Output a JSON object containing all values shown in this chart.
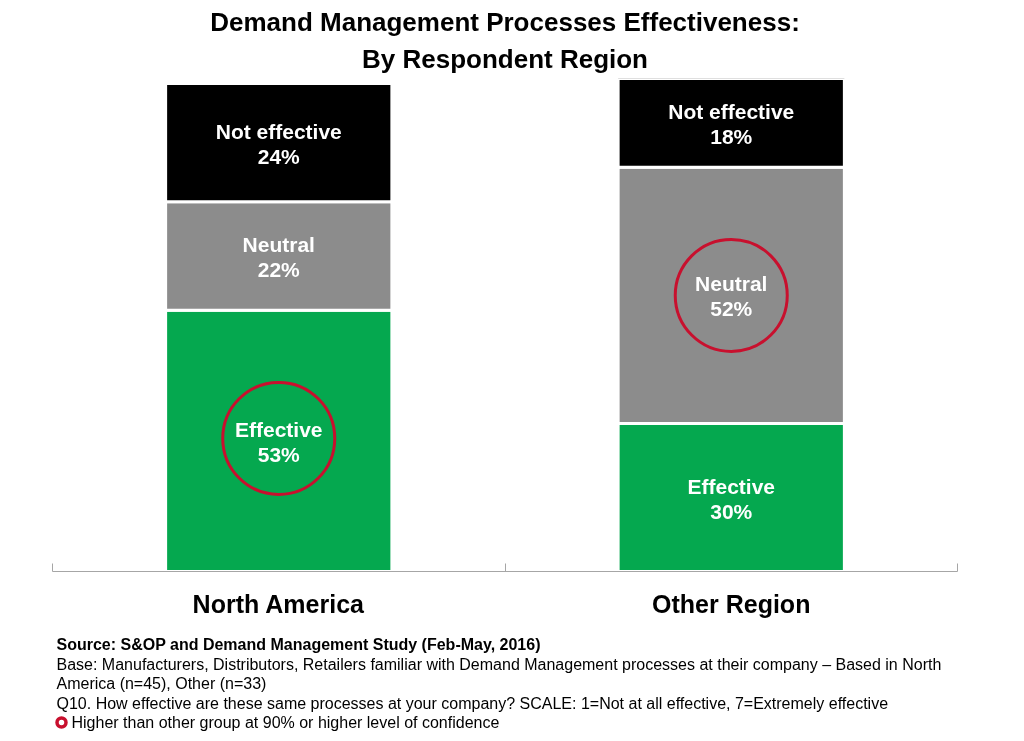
{
  "chart_data": {
    "type": "bar",
    "title": "Demand Management Processes Effectiveness:",
    "subtitle": "By Respondent Region",
    "categories": [
      "North America",
      "Other Region"
    ],
    "stacked": true,
    "ylim": [
      0,
      100
    ],
    "tick_labels": "x",
    "legend": "bottom",
    "series": [
      {
        "name": "Effective",
        "color": "#05a84f",
        "values": [
          53,
          30
        ],
        "value_labels": [
          "53%",
          "30%"
        ]
      },
      {
        "name": "Neutral",
        "color": "#8c8c8c",
        "values": [
          22,
          52
        ],
        "value_labels": [
          "22%",
          "52%"
        ]
      },
      {
        "name": "Not effective",
        "color": "#000000",
        "values": [
          24,
          18
        ],
        "value_labels": [
          "24%",
          "18%"
        ]
      },
      {
        "type": "scatter",
        "name": "Higher than other group at 90% or higher level of confidence",
        "color": "#c8102e",
        "marker": "circle",
        "x": [
          "North America",
          "Other Region"
        ],
        "values": [
          27,
          56
        ]
      }
    ],
    "annotations": [
      "Source:  S&OP and Demand Management Study (Feb-May, 2016)",
      "Base: Manufacturers, Distributors, Retailers familiar with Demand Management processes at their company – Based in North America (n=45), Other (n=33)",
      "Q10. How effective are these same processes at your company? SCALE: 1=Not at all effective, 7=Extremely effective"
    ]
  }
}
